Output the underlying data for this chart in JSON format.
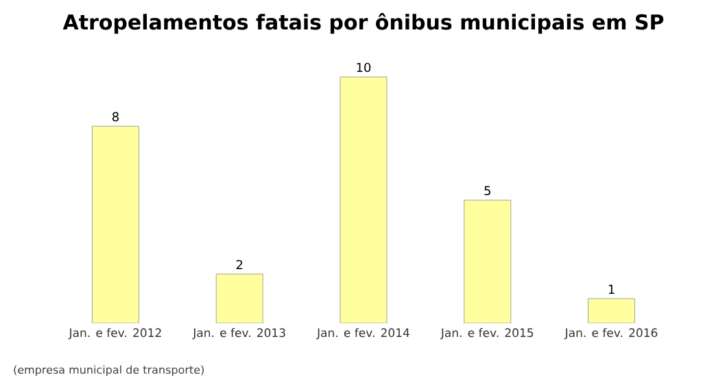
{
  "chart_data": {
    "type": "bar",
    "title": "Atropelamentos fatais por ônibus municipais em SP",
    "categories": [
      "Jan. e fev. 2012",
      "Jan. e fev. 2013",
      "Jan. e fev. 2014",
      "Jan. e fev. 2015",
      "Jan. e fev. 2016"
    ],
    "values": [
      8,
      2,
      10,
      5,
      1
    ],
    "color": "#ffff9e",
    "data_labels": true,
    "annotations": [
      "(empresa municipal de transporte)"
    ]
  }
}
